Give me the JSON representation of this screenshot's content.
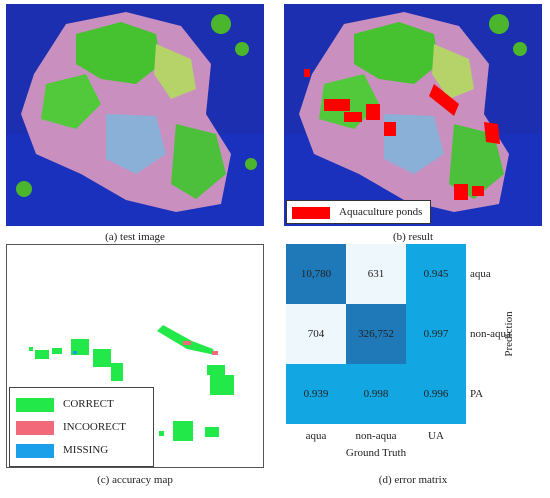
{
  "panel_a": {
    "caption": "(a) test image"
  },
  "panel_b": {
    "caption": "(b) result",
    "legend_label": "Aquaculture ponds",
    "legend_color": "#ff0000"
  },
  "panel_c": {
    "caption": "(c) accuracy map",
    "legend": [
      {
        "label": "CORRECT",
        "color": "#22e84a"
      },
      {
        "label": "INCOORECT",
        "color": "#f26a7a"
      },
      {
        "label": "MISSING",
        "color": "#1aa0e8"
      }
    ]
  },
  "panel_d": {
    "caption": "(d) error matrix",
    "x_axis_title": "Ground Truth",
    "y_axis_title": "Prediction",
    "columns": [
      "aqua",
      "non-aqua",
      "UA"
    ],
    "rows": [
      "aqua",
      "non-aqua",
      "PA"
    ],
    "cells": [
      [
        "10,780",
        "631",
        "0.945"
      ],
      [
        "704",
        "326,752",
        "0.997"
      ],
      [
        "0.939",
        "0.998",
        "0.996"
      ]
    ],
    "cell_colors": [
      [
        "#1f78b8",
        "#eef7fb",
        "#12a7e3"
      ],
      [
        "#eef7fb",
        "#1f78b8",
        "#12a7e3"
      ],
      [
        "#12a7e3",
        "#12a7e3",
        "#12a7e3"
      ]
    ]
  }
}
